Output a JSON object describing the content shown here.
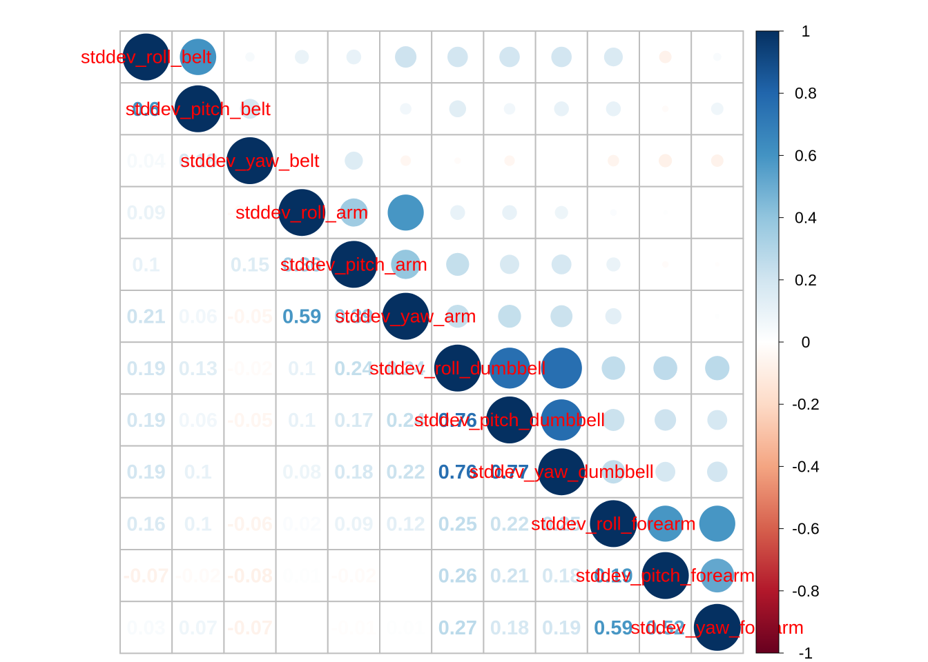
{
  "chart_data": {
    "type": "heatmap",
    "subtype": "correlation-mixed",
    "upper": "circle",
    "lower": "number",
    "variables": [
      "stddev_roll_belt",
      "stddev_pitch_belt",
      "stddev_yaw_belt",
      "stddev_roll_arm",
      "stddev_pitch_arm",
      "stddev_yaw_arm",
      "stddev_roll_dumbbell",
      "stddev_pitch_dumbbell",
      "stddev_yaw_dumbbell",
      "stddev_roll_forearm",
      "stddev_pitch_forearm",
      "stddev_yaw_forearm"
    ],
    "lower_labels": [
      [],
      [
        "0.6"
      ],
      [
        "0.04",
        "0.18"
      ],
      [
        "0.09",
        "",
        "-0.03"
      ],
      [
        "0.1",
        "",
        "0.15",
        "0.36"
      ],
      [
        "0.21",
        "0.06",
        "-0.05",
        "0.59",
        "0.39"
      ],
      [
        "0.19",
        "0.13",
        "-0.02",
        "0.1",
        "0.24",
        "0.24"
      ],
      [
        "0.19",
        "0.06",
        "-0.05",
        "0.1",
        "0.17",
        "0.24",
        "0.76"
      ],
      [
        "0.19",
        "0.1",
        "",
        "0.08",
        "0.18",
        "0.22",
        "0.76",
        "0.77"
      ],
      [
        "0.16",
        "0.1",
        "-0.06",
        "0.02",
        "0.09",
        "0.12",
        "0.25",
        "0.22",
        "0.25"
      ],
      [
        "-0.07",
        "-0.02",
        "-0.08",
        "0.01",
        "-0.02",
        "",
        "0.26",
        "0.21",
        "0.18",
        "0.19"
      ],
      [
        "0.03",
        "0.07",
        "-0.07",
        "",
        "-0.01",
        "0.01",
        "0.27",
        "0.18",
        "0.19",
        "0.59",
        "0.52"
      ]
    ],
    "correlation": [
      [
        1,
        0.6,
        0.04,
        0.09,
        0.1,
        0.21,
        0.19,
        0.19,
        0.19,
        0.16,
        -0.07,
        0.03
      ],
      [
        0.6,
        1,
        0.18,
        0.0,
        0.0,
        0.06,
        0.13,
        0.06,
        0.1,
        0.1,
        -0.02,
        0.07
      ],
      [
        0.04,
        0.18,
        1,
        -0.03,
        0.15,
        -0.05,
        -0.02,
        -0.05,
        0.0,
        -0.06,
        -0.08,
        -0.07
      ],
      [
        0.09,
        0.0,
        -0.03,
        1,
        0.36,
        0.59,
        0.1,
        0.1,
        0.08,
        0.02,
        0.01,
        0.0
      ],
      [
        0.1,
        0.0,
        0.15,
        0.36,
        1,
        0.39,
        0.24,
        0.17,
        0.18,
        0.09,
        -0.02,
        -0.01
      ],
      [
        0.21,
        0.06,
        -0.05,
        0.59,
        0.39,
        1,
        0.24,
        0.24,
        0.22,
        0.12,
        0.0,
        0.01
      ],
      [
        0.19,
        0.13,
        -0.02,
        0.1,
        0.24,
        0.24,
        1,
        0.76,
        0.76,
        0.25,
        0.26,
        0.27
      ],
      [
        0.19,
        0.06,
        -0.05,
        0.1,
        0.17,
        0.24,
        0.76,
        1,
        0.77,
        0.22,
        0.21,
        0.18
      ],
      [
        0.19,
        0.1,
        0.0,
        0.08,
        0.18,
        0.22,
        0.76,
        0.77,
        1,
        0.25,
        0.18,
        0.19
      ],
      [
        0.16,
        0.1,
        -0.06,
        0.02,
        0.09,
        0.12,
        0.25,
        0.22,
        0.25,
        1,
        0.59,
        0.59
      ],
      [
        -0.07,
        -0.02,
        -0.08,
        0.01,
        -0.02,
        0.0,
        0.26,
        0.21,
        0.18,
        0.59,
        1,
        0.52
      ],
      [
        0.03,
        0.07,
        -0.07,
        0.0,
        -0.01,
        0.01,
        0.27,
        0.18,
        0.19,
        0.59,
        0.52,
        1
      ]
    ],
    "colorbar": {
      "range": [
        -1,
        1
      ],
      "ticks": [
        "1",
        "0.8",
        "0.6",
        "0.4",
        "0.2",
        "0",
        "-0.2",
        "-0.4",
        "-0.6",
        "-0.8",
        "-1"
      ],
      "colors": [
        "#67001F",
        "#B2182B",
        "#D6604D",
        "#F4A582",
        "#FDDBC7",
        "#FFFFFF",
        "#D1E5F0",
        "#92C5DE",
        "#4393C3",
        "#2166AC",
        "#053061"
      ]
    },
    "label_color": "#FF0000",
    "grid_color": "#BEBEBE",
    "title": "",
    "xlabel": "",
    "ylabel": ""
  }
}
